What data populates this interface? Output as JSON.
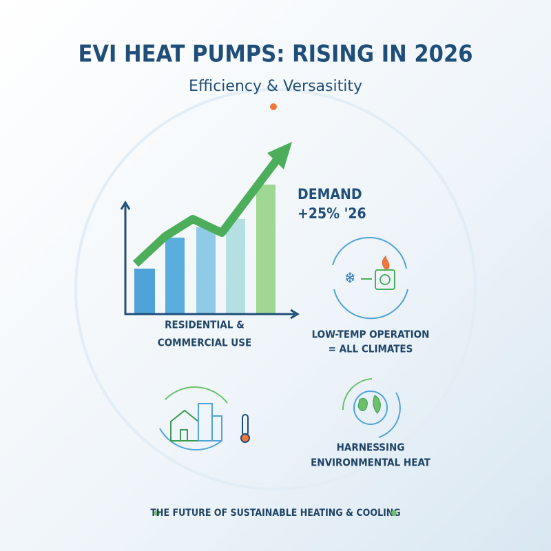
{
  "header": {
    "title": "EVI HEAT PUMPS: RISING IN 2026",
    "subtitle": "Efficiency & Versasitity"
  },
  "callout": {
    "lines": [
      "DEMAND",
      "+25% '26"
    ]
  },
  "captions": [
    {
      "lines": [
        "RESIDENTIAL &",
        "COMMERCIAL USE"
      ]
    },
    {
      "lines": [
        "LOW-TEMP OPERATION",
        "= ALL CLIMATES"
      ]
    },
    {
      "lines": [
        "HARNESSING",
        "ENVIRONMENTAL HEAT"
      ]
    }
  ],
  "footer": {
    "text": "THE FUTURE OF SUSTAINABLE HEATING & COOLING"
  }
}
